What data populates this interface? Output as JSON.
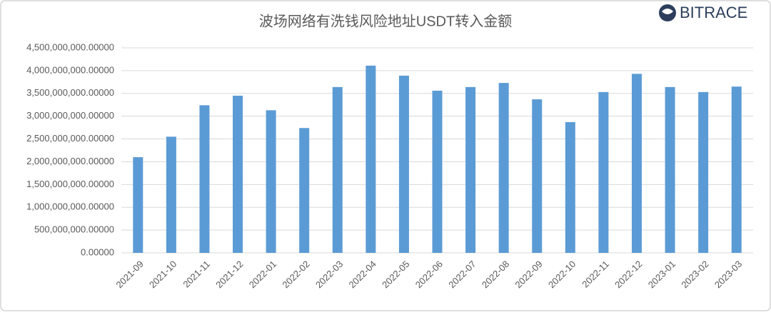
{
  "brand": "BITRACE",
  "chart_data": {
    "type": "bar",
    "title": "波场网络有洗钱风险地址USDT转入金额",
    "categories": [
      "2021-09",
      "2021-10",
      "2021-11",
      "2021-12",
      "2022-01",
      "2022-02",
      "2022-03",
      "2022-04",
      "2022-05",
      "2022-06",
      "2022-07",
      "2022-08",
      "2022-09",
      "2022-10",
      "2022-11",
      "2022-12",
      "2023-01",
      "2023-02",
      "2023-03"
    ],
    "values": [
      2100000000,
      2550000000,
      3240000000,
      3450000000,
      3130000000,
      2740000000,
      3640000000,
      4110000000,
      3890000000,
      3560000000,
      3640000000,
      3730000000,
      3370000000,
      2870000000,
      3530000000,
      3930000000,
      3640000000,
      3530000000,
      3650000000
    ],
    "color": "#5b9bd5",
    "ylim": [
      0,
      4500000000
    ],
    "yticks": [
      {
        "value": 0,
        "label": "0.00000"
      },
      {
        "value": 500000000,
        "label": "500,000,000.00000"
      },
      {
        "value": 1000000000,
        "label": "1,000,000,000.00000"
      },
      {
        "value": 1500000000,
        "label": "1,500,000,000.00000"
      },
      {
        "value": 2000000000,
        "label": "2,000,000,000.00000"
      },
      {
        "value": 2500000000,
        "label": "2,500,000,000.00000"
      },
      {
        "value": 3000000000,
        "label": "3,000,000,000.00000"
      },
      {
        "value": 3500000000,
        "label": "3,500,000,000.00000"
      },
      {
        "value": 4000000000,
        "label": "4,000,000,000.00000"
      },
      {
        "value": 4500000000,
        "label": "4,500,000,000.00000"
      }
    ],
    "grid": true
  }
}
